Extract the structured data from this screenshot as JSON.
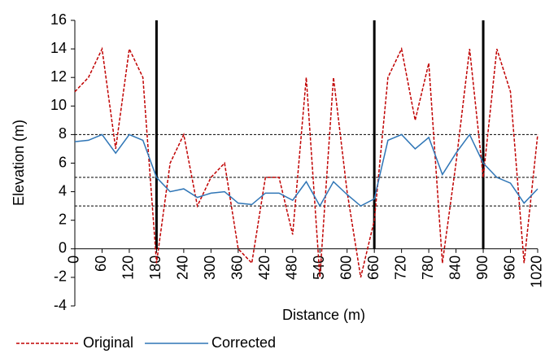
{
  "chart_data": {
    "type": "line",
    "xlabel": "Distance (m)",
    "ylabel": "Elevation (m)",
    "x": [
      0,
      30,
      60,
      90,
      120,
      150,
      180,
      210,
      240,
      270,
      300,
      330,
      360,
      390,
      420,
      450,
      480,
      510,
      540,
      570,
      600,
      630,
      660,
      690,
      720,
      750,
      780,
      810,
      840,
      870,
      900,
      930,
      960,
      990,
      1020
    ],
    "series": [
      {
        "name": "Original",
        "color": "#c00000",
        "dashed": true,
        "values": [
          11,
          12,
          14,
          7,
          14,
          12,
          -1,
          6,
          8,
          3,
          5,
          6,
          0,
          -1,
          5,
          5,
          1,
          12,
          -2,
          12,
          4,
          -2,
          2,
          12,
          14,
          9,
          13,
          -1,
          6,
          14,
          5,
          14,
          11,
          -1,
          8
        ]
      },
      {
        "name": "Corrected",
        "color": "#2e75b6",
        "dashed": false,
        "values": [
          7.5,
          7.6,
          8,
          6.7,
          8,
          7.6,
          5,
          4,
          4.2,
          3.6,
          3.9,
          4,
          3.2,
          3.1,
          3.9,
          3.9,
          3.4,
          4.7,
          3,
          4.7,
          3.8,
          3,
          3.5,
          7.6,
          8,
          7,
          7.8,
          5.2,
          6.7,
          8,
          6,
          5,
          4.6,
          3.2,
          4.2
        ]
      }
    ],
    "xlim": [
      0,
      1020
    ],
    "xticks": [
      0,
      60,
      120,
      180,
      240,
      300,
      360,
      420,
      480,
      540,
      600,
      660,
      720,
      780,
      840,
      900,
      960,
      1020
    ],
    "ylim": [
      -4,
      16
    ],
    "yticks": [
      -4,
      -2,
      0,
      2,
      4,
      6,
      8,
      10,
      12,
      14,
      16
    ],
    "vlines": [
      180,
      660,
      900
    ],
    "hlines": [
      8,
      5,
      3
    ],
    "legend": "bottom"
  }
}
